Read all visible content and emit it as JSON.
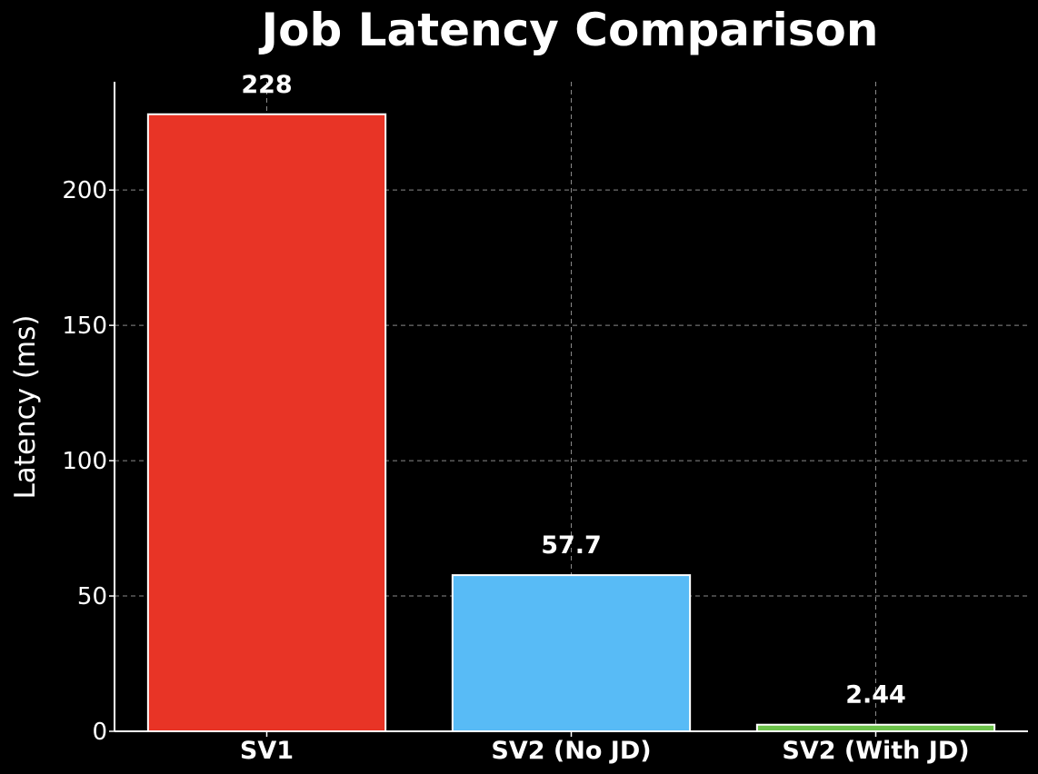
{
  "chart_data": {
    "type": "bar",
    "title": "Job Latency Comparison",
    "xlabel": "",
    "ylabel": "Latency (ms)",
    "categories": [
      "SV1",
      "SV2 (No JD)",
      "SV2 (With JD)"
    ],
    "values": [
      228,
      57.7,
      2.44
    ],
    "value_labels": [
      "228",
      "57.7",
      "2.44"
    ],
    "colors": [
      "#e83426",
      "#58bbf6",
      "#6cc24a"
    ],
    "ylim": [
      0,
      240
    ],
    "yticks": [
      0,
      50,
      100,
      150,
      200
    ],
    "grid": true,
    "background": "#000000",
    "text_color": "#ffffff"
  }
}
